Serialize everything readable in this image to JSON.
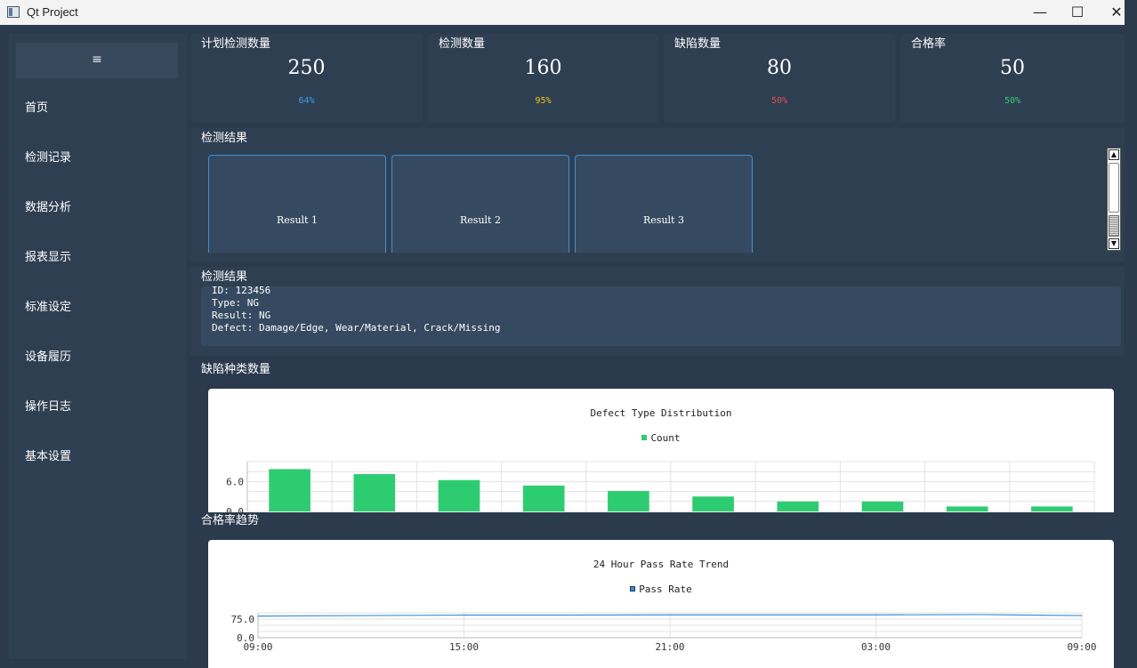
{
  "window": {
    "title": "Qt Project",
    "minimize_glyph": "—",
    "maximize_glyph": "☐",
    "close_glyph": "✕"
  },
  "sidebar": {
    "menu_glyph": "≡",
    "items": [
      {
        "label": "首页"
      },
      {
        "label": "检测记录"
      },
      {
        "label": "数据分析"
      },
      {
        "label": "报表显示"
      },
      {
        "label": "标准设定"
      },
      {
        "label": "设备履历"
      },
      {
        "label": "操作日志"
      },
      {
        "label": "基本设置"
      }
    ]
  },
  "stats": [
    {
      "title": "计划检测数量",
      "value": "250",
      "percent": "64%",
      "color": "#3aa0f0"
    },
    {
      "title": "检测数量",
      "value": "160",
      "percent": "95%",
      "color": "#f0c419"
    },
    {
      "title": "缺陷数量",
      "value": "80",
      "percent": "50%",
      "color": "#e84c4c"
    },
    {
      "title": "合格率",
      "value": "50",
      "percent": "50%",
      "color": "#2ecc71"
    }
  ],
  "results_panel": {
    "title": "检测结果",
    "cards": [
      {
        "label": "Result 1"
      },
      {
        "label": "Result 2"
      },
      {
        "label": "Result 3"
      }
    ]
  },
  "detail_panel": {
    "title": "检测结果",
    "lines": [
      "ID: 123456",
      "Type: NG",
      "Result: NG",
      "Defect: Damage/Edge, Wear/Material, Crack/Missing"
    ]
  },
  "defect_section": {
    "label": "缺陷种类数量"
  },
  "trend_section": {
    "label": "合格率趋势"
  },
  "chart_data": [
    {
      "type": "bar",
      "title": "Defect Type Distribution",
      "legend": "Count",
      "legend_position": "top",
      "color": "#2ecc71",
      "categories": [
        "...",
        "...",
        "...",
        "...",
        "...",
        "...",
        "...",
        "...",
        "...",
        "..."
      ],
      "values": [
        8.5,
        7.5,
        6.3,
        5.2,
        4.1,
        3.0,
        2.0,
        2.0,
        1.0,
        1.0
      ],
      "ylim": [
        0,
        10
      ],
      "yticks": [
        "6.0",
        "0.0"
      ],
      "grid": true
    },
    {
      "type": "line",
      "title": "24 Hour Pass Rate Trend",
      "legend": "Pass Rate",
      "legend_position": "top",
      "color": "#3a8fd6",
      "x": [
        0,
        3,
        6,
        9,
        12,
        15,
        18,
        21,
        24
      ],
      "xticks": [
        "09:00",
        "15:00",
        "21:00",
        "03:00",
        "09:00"
      ],
      "values": [
        87,
        89,
        91,
        91,
        92,
        92,
        92,
        93,
        89
      ],
      "ylim": [
        0,
        100
      ],
      "yticks": [
        "75.0",
        "0.0"
      ],
      "grid": true
    }
  ]
}
